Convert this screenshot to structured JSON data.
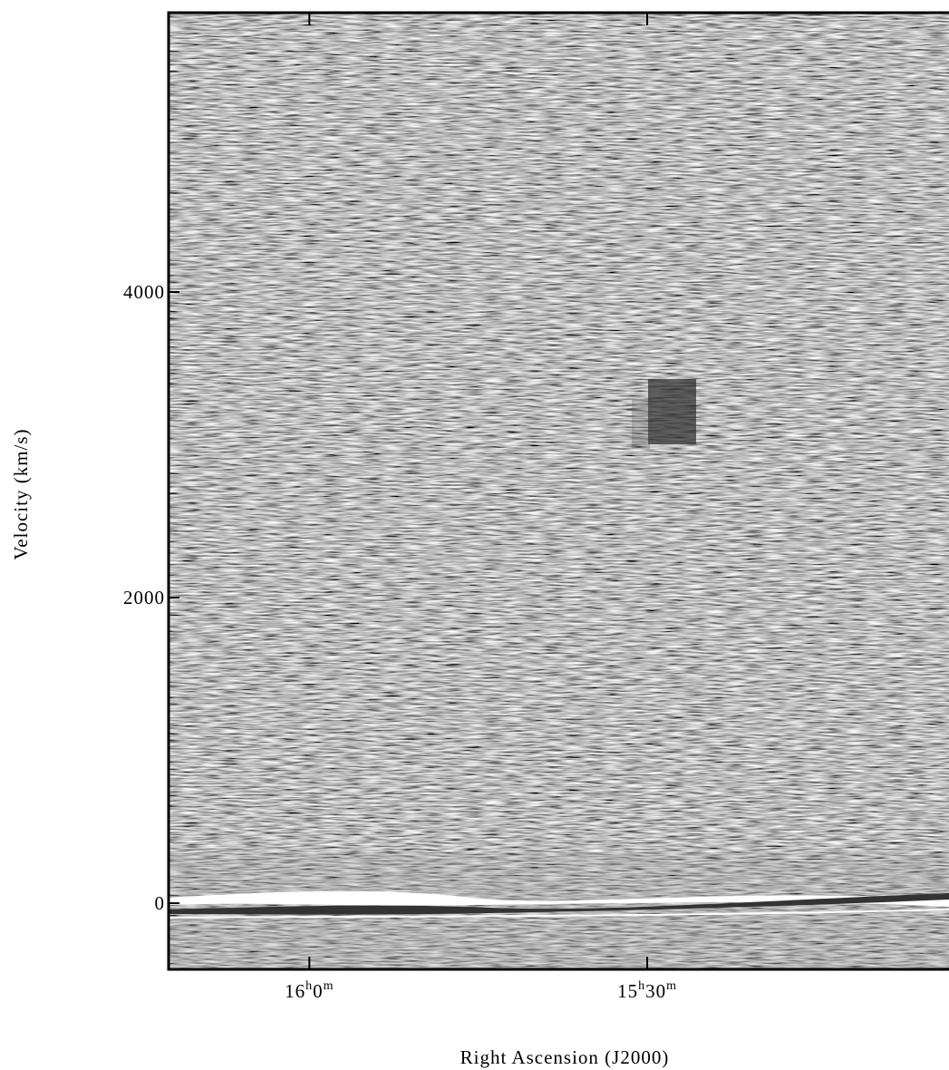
{
  "chart_data": {
    "type": "image",
    "xlabel": "Right Ascension (J2000)",
    "ylabel": "Velocity (km/s)",
    "xlim": [
      972.5,
      903.2
    ],
    "xticks": [
      {
        "value": 960,
        "label": [
          "16",
          "h",
          "0",
          "m"
        ]
      },
      {
        "value": 930,
        "label": [
          "15",
          "h",
          "30",
          "m"
        ]
      }
    ],
    "ylim": [
      -433,
      5828
    ],
    "yticks": [
      0,
      2000,
      4000
    ]
  }
}
